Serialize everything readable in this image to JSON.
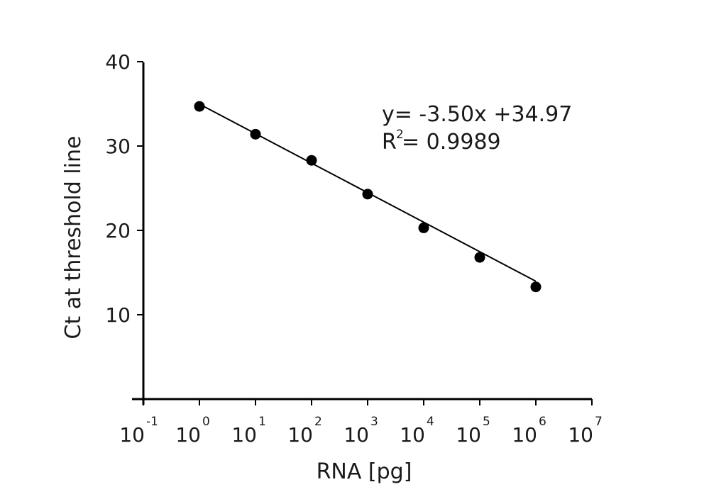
{
  "chart_data": {
    "type": "scatter",
    "title": "",
    "xlabel": "RNA [pg]",
    "ylabel": "Ct at threshold line",
    "x_scale": "log10",
    "xlim": [
      0.1,
      10000000
    ],
    "ylim": [
      0,
      40
    ],
    "x_ticks": [
      {
        "base": "10",
        "exp": "-1",
        "value": 0.1
      },
      {
        "base": "10",
        "exp": "0",
        "value": 1
      },
      {
        "base": "10",
        "exp": "1",
        "value": 10
      },
      {
        "base": "10",
        "exp": "2",
        "value": 100
      },
      {
        "base": "10",
        "exp": "3",
        "value": 1000
      },
      {
        "base": "10",
        "exp": "4",
        "value": 10000
      },
      {
        "base": "10",
        "exp": "5",
        "value": 100000
      },
      {
        "base": "10",
        "exp": "6",
        "value": 1000000
      },
      {
        "base": "10",
        "exp": "7",
        "value": 10000000
      }
    ],
    "y_ticks": [
      {
        "label": "10",
        "value": 10
      },
      {
        "label": "20",
        "value": 20
      },
      {
        "label": "30",
        "value": 30
      },
      {
        "label": "40",
        "value": 40
      }
    ],
    "points": [
      {
        "x": 1,
        "y": 34.7
      },
      {
        "x": 10,
        "y": 31.4
      },
      {
        "x": 100,
        "y": 28.3
      },
      {
        "x": 1000,
        "y": 24.3
      },
      {
        "x": 10000,
        "y": 20.3
      },
      {
        "x": 100000,
        "y": 16.8
      },
      {
        "x": 1000000,
        "y": 13.3
      }
    ],
    "fit": {
      "slope": -3.5,
      "intercept": 34.97,
      "x_range": [
        1,
        1000000
      ]
    },
    "grid": false,
    "legend": "none",
    "annotations": {
      "equation": "y= -3.50x +34.97",
      "r2_prefix": "R",
      "r2_sup": "2",
      "r2_value": "= 0.9989"
    },
    "colors": {
      "axis": "#000000",
      "marker": "#000000",
      "line": "#000000"
    }
  }
}
